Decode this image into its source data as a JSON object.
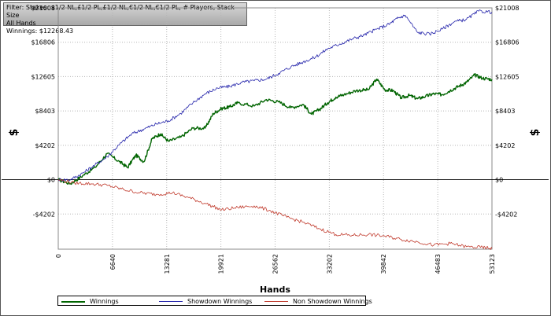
{
  "filter": {
    "line1": "Filter: Stakes: $1/2 NL,£1/2 PL,£1/2 NL,€1/2 NL,€1/2 PL, # Players, Stack Size",
    "line2": "All Hands",
    "line3": "Winnings: $12268.43"
  },
  "chart_data": {
    "type": "line",
    "ylabel": "$",
    "xlabel": "Hands",
    "xlim": [
      0,
      53123
    ],
    "ylim": [
      -8500,
      21008
    ],
    "x_ticks": [
      "0",
      "6640",
      "13281",
      "19921",
      "26562",
      "33202",
      "39842",
      "46483",
      "53123"
    ],
    "y_ticks": [
      {
        "value": 21008,
        "label": "$21008"
      },
      {
        "value": 16806,
        "label": "$16806"
      },
      {
        "value": 12605,
        "label": "$12605"
      },
      {
        "value": 8403,
        "label": "$8403"
      },
      {
        "value": 4202,
        "label": "$4202"
      },
      {
        "value": 0,
        "label": "$0"
      },
      {
        "value": -4202,
        "label": "-$4202"
      }
    ],
    "grid": true,
    "legend_position": "bottom-left",
    "series": [
      {
        "name": "Winnings",
        "color": "#006400",
        "x": [
          0,
          1500,
          3000,
          4500,
          6000,
          7500,
          8500,
          9500,
          10500,
          11500,
          12500,
          13500,
          15000,
          16500,
          18000,
          19000,
          20000,
          21000,
          22000,
          24000,
          25500,
          27000,
          28500,
          30000,
          31000,
          32000,
          33000,
          34000,
          35000,
          36500,
          38000,
          39000,
          40000,
          41000,
          42000,
          43000,
          44000,
          45000,
          46000,
          47000,
          48000,
          49000,
          50000,
          51000,
          52000,
          53123
        ],
        "y": [
          0,
          -500,
          500,
          1500,
          3200,
          2200,
          1500,
          3000,
          2200,
          5000,
          5600,
          4700,
          5200,
          6300,
          6300,
          8100,
          8700,
          8900,
          9400,
          9000,
          9800,
          9500,
          8800,
          9200,
          8000,
          8600,
          9400,
          10100,
          10400,
          10900,
          11000,
          12300,
          11000,
          10900,
          10000,
          10300,
          9900,
          10200,
          10500,
          10400,
          10900,
          11400,
          11900,
          12800,
          12400,
          12268
        ]
      },
      {
        "name": "Showdown Winnings",
        "color": "#2222aa",
        "x": [
          0,
          1500,
          3000,
          4500,
          6000,
          7500,
          9000,
          10500,
          12000,
          13500,
          15000,
          16500,
          18000,
          19500,
          21000,
          22500,
          24000,
          25500,
          27000,
          28500,
          30000,
          31500,
          33000,
          34500,
          36000,
          37500,
          39000,
          40500,
          41500,
          42500,
          44000,
          45500,
          47000,
          48500,
          50000,
          51500,
          53123
        ],
        "y": [
          0,
          0,
          800,
          1800,
          2800,
          4300,
          5600,
          6200,
          6800,
          7200,
          8100,
          9400,
          10500,
          11200,
          11400,
          11900,
          12100,
          12300,
          13000,
          13800,
          14400,
          15000,
          16000,
          16600,
          17200,
          17700,
          18400,
          19000,
          19700,
          20100,
          18000,
          17800,
          18400,
          19300,
          19600,
          20600,
          20500
        ]
      },
      {
        "name": "Non Showdown Winnings",
        "color": "#c0392b",
        "x": [
          0,
          2000,
          4000,
          6000,
          8000,
          10000,
          12000,
          14000,
          16000,
          18000,
          20000,
          22000,
          24000,
          26000,
          28000,
          30000,
          32000,
          34000,
          36000,
          38000,
          40000,
          42000,
          44000,
          46000,
          48000,
          50000,
          52000,
          53123
        ],
        "y": [
          0,
          -400,
          -500,
          -700,
          -1200,
          -1600,
          -1800,
          -1600,
          -2200,
          -2900,
          -3700,
          -3400,
          -3200,
          -3800,
          -4600,
          -5200,
          -6000,
          -6700,
          -6800,
          -6700,
          -6900,
          -7300,
          -7600,
          -8000,
          -7800,
          -8200,
          -8300,
          -8400
        ]
      }
    ]
  }
}
